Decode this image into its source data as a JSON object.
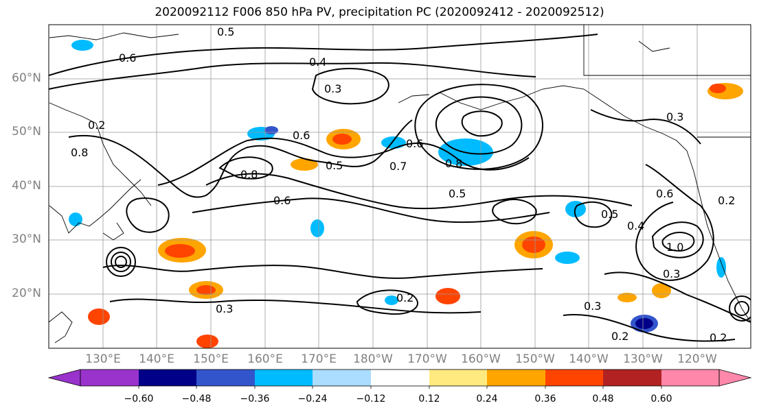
{
  "title": "2020092112 F006 850 hPa PV, precipitation PC (2020092412 - 2020092512)",
  "map": {
    "lat_labels": [
      "60°N",
      "50°N",
      "40°N",
      "30°N",
      "20°N"
    ],
    "lon_labels": [
      "130°E",
      "140°E",
      "150°E",
      "160°E",
      "170°E",
      "180°W",
      "170°W",
      "160°W",
      "150°W",
      "140°W",
      "130°W",
      "120°W"
    ],
    "contour_labels": [
      "0.5",
      "0.6",
      "0.4",
      "0.3",
      "0.2",
      "0.8",
      "0.6",
      "0.5",
      "0.8",
      "0.6",
      "0.7",
      "0.8",
      "0.5",
      "0.3",
      "0.2",
      "0.3",
      "0.6",
      "0.5",
      "0.4",
      "0.6",
      "1.0",
      "0.2",
      "0.3",
      "0.2",
      "0.3",
      "0.2"
    ]
  },
  "colorbar": {
    "colors": [
      "#9933cc",
      "#000088",
      "#3355cc",
      "#00bbff",
      "#aaddff",
      "#ffffff",
      "#ffea80",
      "#ffa500",
      "#ff4400",
      "#b22222",
      "#ff88aa"
    ],
    "tick_labels": [
      "−0.60",
      "−0.48",
      "−0.36",
      "−0.24",
      "−0.12",
      "0.12",
      "0.24",
      "0.36",
      "0.48",
      "0.60"
    ]
  }
}
